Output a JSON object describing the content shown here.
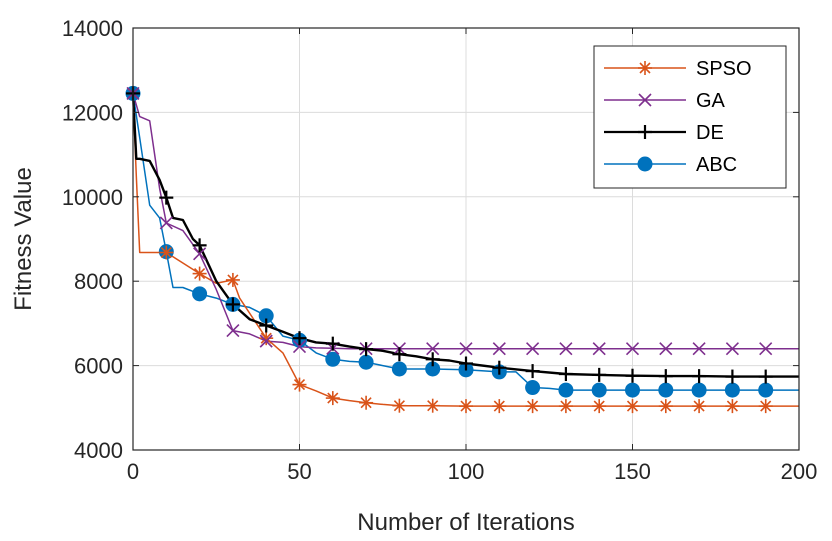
{
  "chart_data": {
    "type": "line",
    "title": "",
    "xlabel": "Number of Iterations",
    "ylabel": "Fitness Value",
    "xlim": [
      0,
      200
    ],
    "ylim": [
      4000,
      14000
    ],
    "xticks": [
      0,
      50,
      100,
      150,
      200
    ],
    "yticks": [
      4000,
      6000,
      8000,
      10000,
      12000,
      14000
    ],
    "xtick_labels": [
      "0",
      "50",
      "100",
      "150",
      "200"
    ],
    "ytick_labels": [
      "4000",
      "6000",
      "8000",
      "10000",
      "12000",
      "14000"
    ],
    "grid": true,
    "legend_position": "top-right",
    "series": [
      {
        "name": "SPSO",
        "color": "#D95319",
        "marker": "asterisk",
        "x": [
          0,
          1,
          2,
          10,
          20,
          25,
          30,
          32,
          40,
          45,
          50,
          55,
          60,
          65,
          70,
          75,
          80,
          90,
          100,
          110,
          120,
          130,
          140,
          150,
          160,
          170,
          180,
          190,
          200
        ],
        "y": [
          12450,
          10500,
          8680,
          8680,
          8180,
          7950,
          8030,
          7600,
          6650,
          6300,
          5550,
          5400,
          5230,
          5170,
          5120,
          5080,
          5050,
          5050,
          5040,
          5040,
          5040,
          5040,
          5040,
          5040,
          5040,
          5040,
          5040,
          5040,
          5040
        ]
      },
      {
        "name": "GA",
        "color": "#7E2F8E",
        "marker": "x",
        "x": [
          0,
          2,
          5,
          8,
          10,
          15,
          20,
          25,
          30,
          35,
          40,
          45,
          50,
          55,
          60,
          65,
          70,
          80,
          90,
          100,
          110,
          120,
          130,
          140,
          150,
          160,
          170,
          180,
          190,
          200
        ],
        "y": [
          12450,
          11900,
          11800,
          10200,
          9380,
          9200,
          8650,
          7800,
          6830,
          6750,
          6580,
          6550,
          6450,
          6420,
          6410,
          6400,
          6400,
          6400,
          6400,
          6400,
          6400,
          6400,
          6400,
          6400,
          6400,
          6400,
          6400,
          6400,
          6400,
          6400
        ]
      },
      {
        "name": "DE",
        "color": "#000000",
        "marker": "plus",
        "x": [
          0,
          1,
          2,
          5,
          8,
          10,
          12,
          15,
          18,
          20,
          25,
          30,
          35,
          40,
          45,
          50,
          55,
          60,
          65,
          70,
          75,
          80,
          85,
          90,
          95,
          100,
          110,
          120,
          130,
          140,
          150,
          160,
          170,
          180,
          190,
          200
        ],
        "y": [
          12450,
          10900,
          10900,
          10850,
          10400,
          9980,
          9500,
          9450,
          9000,
          8850,
          8000,
          7450,
          7100,
          6950,
          6800,
          6650,
          6550,
          6520,
          6450,
          6390,
          6350,
          6270,
          6220,
          6150,
          6120,
          6050,
          5950,
          5870,
          5800,
          5780,
          5760,
          5750,
          5750,
          5740,
          5740,
          5740
        ]
      },
      {
        "name": "ABC",
        "color": "#0072BD",
        "marker": "circle",
        "x": [
          0,
          2,
          5,
          8,
          10,
          12,
          15,
          20,
          25,
          30,
          35,
          40,
          45,
          50,
          55,
          60,
          65,
          70,
          75,
          80,
          90,
          100,
          110,
          115,
          120,
          125,
          130,
          140,
          150,
          160,
          170,
          180,
          190,
          200
        ],
        "y": [
          12450,
          11400,
          9800,
          9500,
          8700,
          7850,
          7850,
          7700,
          7600,
          7450,
          7380,
          7180,
          6700,
          6600,
          6300,
          6150,
          6100,
          6080,
          6000,
          5920,
          5920,
          5900,
          5850,
          5850,
          5480,
          5460,
          5420,
          5420,
          5420,
          5420,
          5420,
          5420,
          5420,
          5420
        ]
      }
    ]
  }
}
